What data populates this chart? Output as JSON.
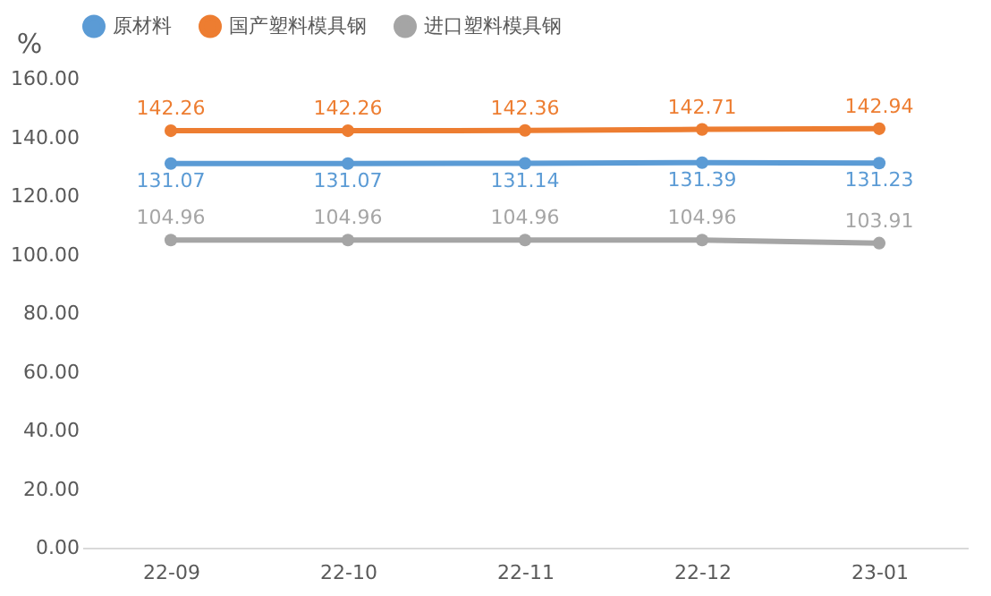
{
  "chart_data": {
    "type": "line",
    "ylabel": "%",
    "categories": [
      "22-09",
      "22-10",
      "22-11",
      "22-12",
      "23-01"
    ],
    "series": [
      {
        "name": "原材料",
        "color": "#5b9bd5",
        "values": [
          131.07,
          131.07,
          131.14,
          131.39,
          131.23
        ]
      },
      {
        "name": "国产塑料模具钢",
        "color": "#ed7d31",
        "values": [
          142.26,
          142.26,
          142.36,
          142.71,
          142.94
        ]
      },
      {
        "name": "进口塑料模具钢",
        "color": "#a5a5a5",
        "values": [
          104.96,
          104.96,
          104.96,
          104.96,
          103.91
        ]
      }
    ],
    "ylim": [
      0,
      160
    ],
    "yticks": [
      {
        "value": 0,
        "label": "0.00"
      },
      {
        "value": 20,
        "label": "20.00"
      },
      {
        "value": 40,
        "label": "40.00"
      },
      {
        "value": 60,
        "label": "60.00"
      },
      {
        "value": 80,
        "label": "80.00"
      },
      {
        "value": 100,
        "label": "100.00"
      },
      {
        "value": 120,
        "label": "120.00"
      },
      {
        "value": 140,
        "label": "140.00"
      },
      {
        "value": 160,
        "label": "160.00"
      }
    ],
    "grid": false,
    "legend": "top",
    "marker": "circle",
    "line_style": "solid",
    "data_labels": true
  }
}
